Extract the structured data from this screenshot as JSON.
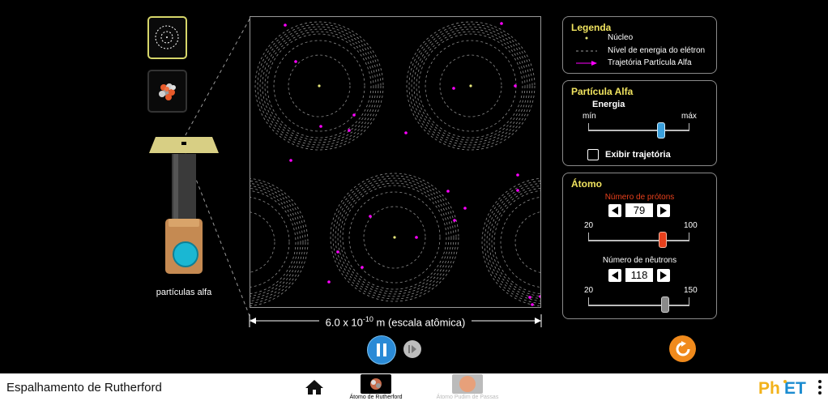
{
  "title": "Espalhamento de Rutherford",
  "gun": {
    "label": "partículas alfa"
  },
  "scale": {
    "text_pre": "6.0 x 10",
    "exponent": "-10",
    "text_post": " m (escala atômica)"
  },
  "legend": {
    "title": "Legenda",
    "items": [
      "Núcleo",
      "Nível de energia do elétron",
      "Trajetória Partícula Alfa"
    ]
  },
  "alpha": {
    "title": "Partícula Alfa",
    "energy_label": "Energia",
    "min_label": "mín",
    "max_label": "máx",
    "energy_level": 0.72,
    "show_traces_label": "Exibir trajetória",
    "show_traces": false
  },
  "atom": {
    "title": "Átomo",
    "protons_label": "Número de prótons",
    "protons_value": "79",
    "protons_min": "20",
    "protons_max": "100",
    "neutrons_label": "Número de nêutrons",
    "neutrons_value": "118",
    "neutrons_min": "20",
    "neutrons_max": "150"
  },
  "screens": [
    {
      "label": "Átomo de Rutherford",
      "active": true
    },
    {
      "label": "Átomo Pudim de Passas",
      "active": false
    }
  ],
  "colors": {
    "legend_title": "#f0e35f",
    "protons_label": "#e8401c",
    "particle": "#ff00ff",
    "nucleus": "#e6e67a",
    "play_blue": "#2a8ad6",
    "reset_orange": "#f08a1c"
  }
}
